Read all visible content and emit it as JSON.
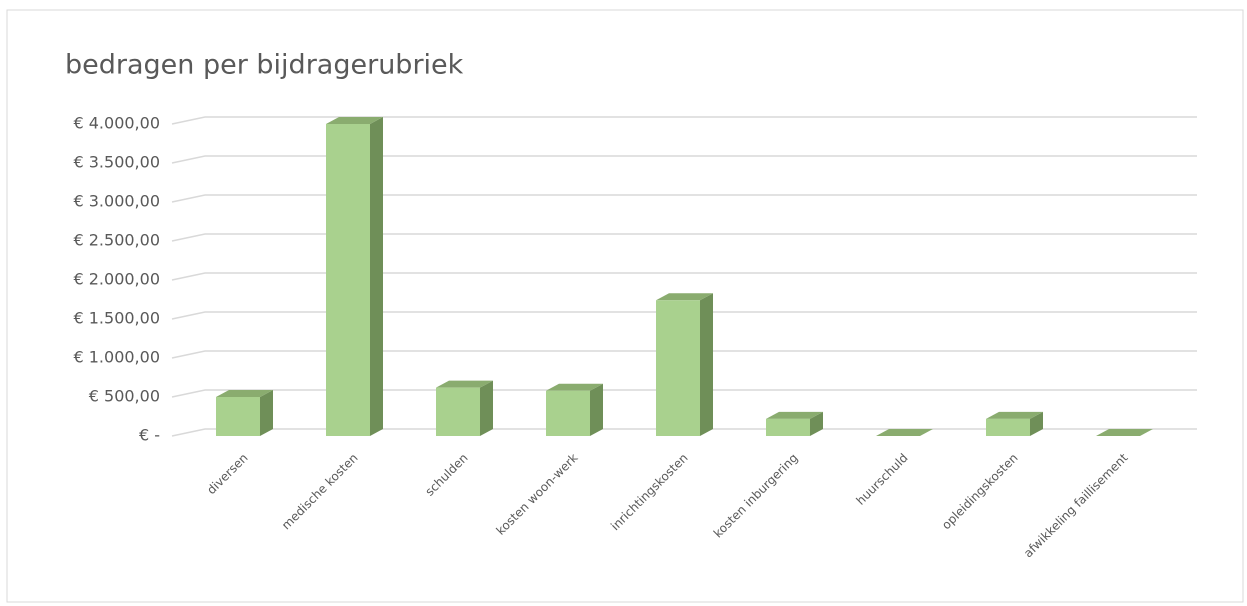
{
  "chart_data": {
    "type": "bar",
    "title": "bedragen per bijdragerubriek",
    "categories": [
      "diversen",
      "medische kosten",
      "schulden",
      "kosten woon-werk",
      "inrichtingskosten",
      "kosten inburgering",
      "huurschuld",
      "opleidingskosten",
      "afwikkeling faillisement"
    ],
    "values": [
      500,
      4000,
      620,
      580,
      1740,
      220,
      0,
      220,
      0
    ],
    "color": "#a9d18e",
    "ylim": [
      0,
      4000
    ],
    "yticks": [
      {
        "value": 0,
        "label": "€ -"
      },
      {
        "value": 500,
        "label": "€ 500,00"
      },
      {
        "value": 1000,
        "label": "€ 1.000,00"
      },
      {
        "value": 1500,
        "label": "€ 1.500,00"
      },
      {
        "value": 2000,
        "label": "€ 2.000,00"
      },
      {
        "value": 2500,
        "label": "€ 2.500,00"
      },
      {
        "value": 3000,
        "label": "€ 3.000,00"
      },
      {
        "value": 3500,
        "label": "€ 3.500,00"
      },
      {
        "value": 4000,
        "label": "€ 4.000,00"
      }
    ],
    "grid": true
  }
}
